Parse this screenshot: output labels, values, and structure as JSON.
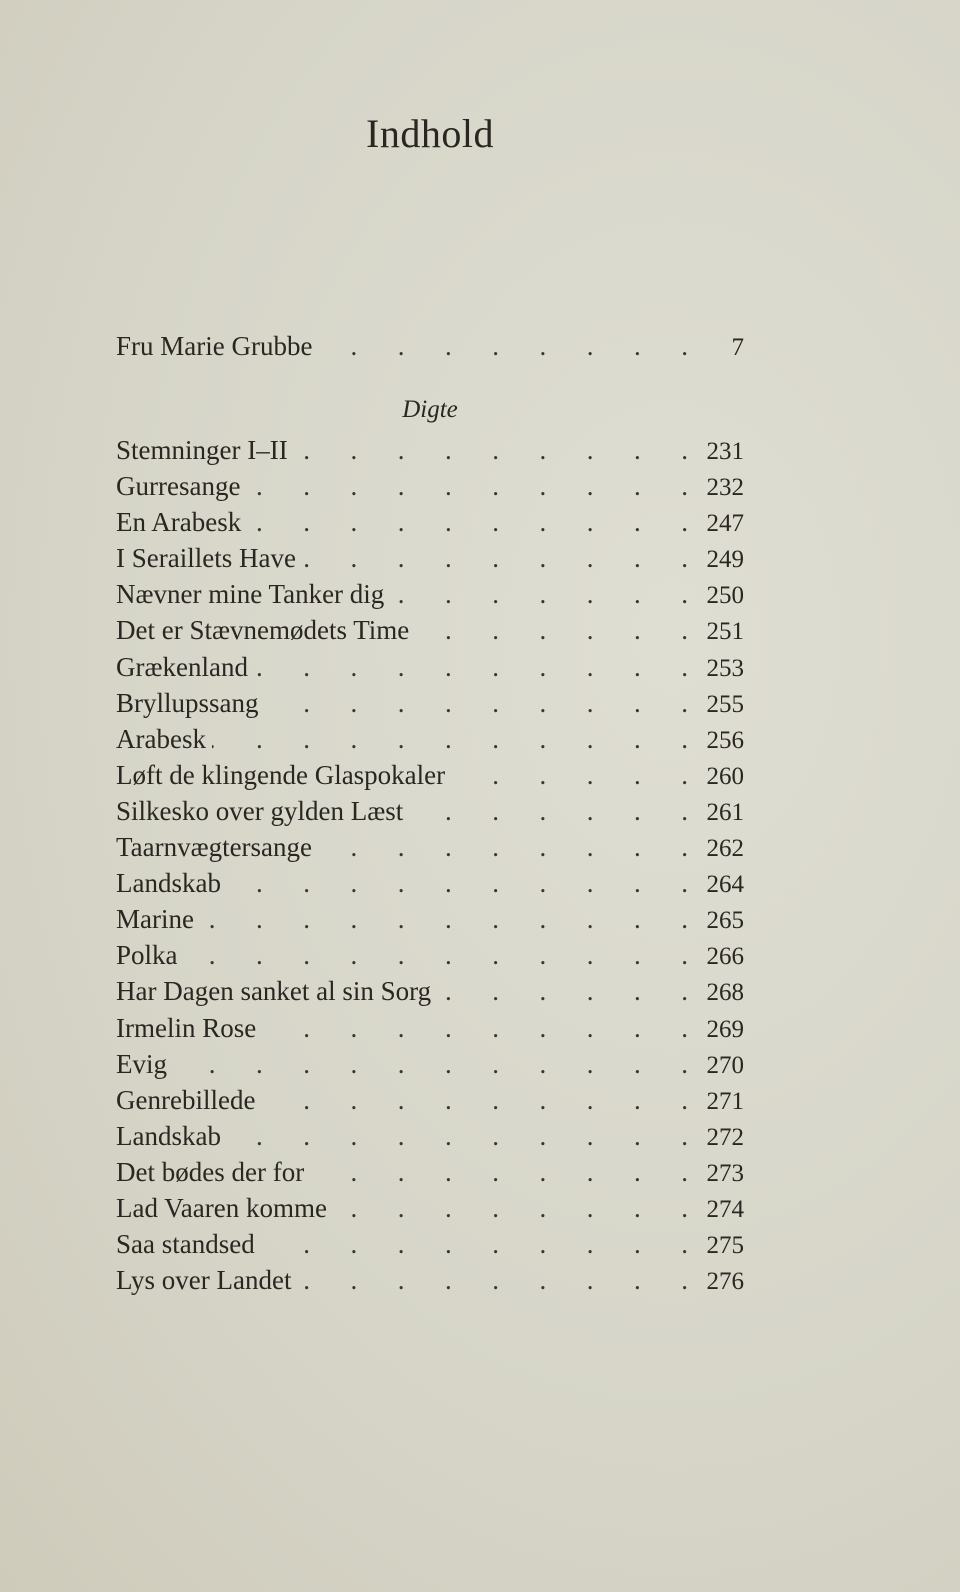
{
  "title": "Indhold",
  "main_entries": [
    {
      "title": "Fru Marie Grubbe",
      "page": "7"
    }
  ],
  "section": {
    "heading": "Digte",
    "entries": [
      {
        "title": "Stemninger I–II",
        "page": "231"
      },
      {
        "title": "Gurresange",
        "page": "232"
      },
      {
        "title": "En Arabesk",
        "page": "247"
      },
      {
        "title": "I Seraillets Have",
        "page": "249"
      },
      {
        "title": "Nævner mine Tanker dig",
        "page": "250"
      },
      {
        "title": "Det er Stævnemødets Time",
        "page": "251"
      },
      {
        "title": "Grækenland",
        "page": "253"
      },
      {
        "title": "Bryllupssang",
        "page": "255"
      },
      {
        "title": "Arabesk",
        "page": "256"
      },
      {
        "title": "Løft de klingende Glaspokaler",
        "page": "260"
      },
      {
        "title": "Silkesko over gylden Læst",
        "page": "261"
      },
      {
        "title": "Taarnvægtersange",
        "page": "262"
      },
      {
        "title": "Landskab",
        "page": "264"
      },
      {
        "title": "Marine",
        "page": "265"
      },
      {
        "title": "Polka",
        "page": "266"
      },
      {
        "title": "Har Dagen sanket al sin Sorg",
        "page": "268"
      },
      {
        "title": "Irmelin Rose",
        "page": "269"
      },
      {
        "title": "Evig",
        "page": "270"
      },
      {
        "title": "Genrebillede",
        "page": "271"
      },
      {
        "title": "Landskab",
        "page": "272"
      },
      {
        "title": "Det bødes der for",
        "page": "273"
      },
      {
        "title": "Lad Vaaren komme",
        "page": "274"
      },
      {
        "title": "Saa standsed",
        "page": "275"
      },
      {
        "title": "Lys over Landet",
        "page": "276"
      }
    ]
  }
}
